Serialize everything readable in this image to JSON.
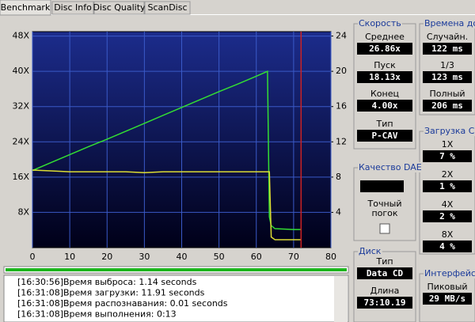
{
  "tabs": [
    "Benchmark",
    "Disc Info",
    "Disc Quality",
    "ScanDisc"
  ],
  "chart_data": {
    "type": "line",
    "x": [
      0,
      5,
      10,
      15,
      20,
      25,
      30,
      35,
      40,
      45,
      50,
      55,
      60,
      63,
      63.5,
      64,
      65,
      70,
      72
    ],
    "series": [
      {
        "color": "#33dd33",
        "values": [
          17.5,
          19.3,
          21.1,
          22.9,
          24.6,
          26.4,
          28.2,
          30,
          31.8,
          33.6,
          35.4,
          37.1,
          38.9,
          40,
          7,
          5,
          4.3,
          4.1,
          4.1
        ]
      },
      {
        "color": "#dddd33",
        "axis": "y2",
        "values": [
          8.8,
          8.7,
          8.6,
          8.6,
          8.6,
          8.6,
          8.5,
          8.6,
          8.6,
          8.6,
          8.6,
          8.6,
          8.6,
          8.6,
          8.6,
          1.2,
          0.9,
          0.9,
          0.9
        ]
      }
    ],
    "xlim": [
      0,
      80
    ],
    "xticks": [
      0,
      10,
      20,
      30,
      40,
      50,
      60,
      70,
      80
    ],
    "ylim": [
      0,
      49
    ],
    "yticks": [
      {
        "value": 8,
        "label": "8X"
      },
      {
        "value": 16,
        "label": "16X"
      },
      {
        "value": 24,
        "label": "24X"
      },
      {
        "value": 32,
        "label": "32X"
      },
      {
        "value": 40,
        "label": "40X"
      },
      {
        "value": 48,
        "label": "48X"
      }
    ],
    "y2lim": [
      0,
      24.5
    ],
    "y2ticks": [
      4,
      8,
      12,
      16,
      20,
      24
    ],
    "grid": true,
    "marker_x": 72,
    "marker_color": "#cc2222"
  },
  "panels": {
    "speed": {
      "title": "Скорость",
      "rows": [
        {
          "label": "Среднее",
          "value": "26.86x"
        },
        {
          "label": "Пуск",
          "value": "18.13x"
        },
        {
          "label": "Конец",
          "value": "4.00x"
        },
        {
          "label": "Тип",
          "value": "P-CAV"
        }
      ]
    },
    "access": {
      "title": "Времена дост",
      "rows": [
        {
          "label": "Случайн.",
          "value": "122 ms"
        },
        {
          "label": "1/3",
          "value": "123 ms"
        },
        {
          "label": "Полный",
          "value": "206 ms"
        }
      ]
    },
    "cpu": {
      "title": "Загрузка CPU",
      "rows": [
        {
          "label": "1X",
          "value": "7 %"
        },
        {
          "label": "2X",
          "value": "1 %"
        },
        {
          "label": "4X",
          "value": "2 %"
        },
        {
          "label": "8X",
          "value": "4 %"
        }
      ]
    },
    "dae": {
      "title": "Качество DAE",
      "check_label": [
        "Точный",
        "погок"
      ]
    },
    "disc": {
      "title": "Диск",
      "rows": [
        {
          "label": "Тип",
          "value": "Data CD"
        },
        {
          "label": "Длина",
          "value": "73:10.19"
        }
      ]
    },
    "iface": {
      "title": "Интерфейс",
      "rows": [
        {
          "label": "Пиковый",
          "value": "29 MB/s"
        }
      ]
    }
  },
  "log": [
    {
      "time": "[16:30:56]",
      "text": "Время выброса: 1.14 seconds"
    },
    {
      "time": "[16:31:08]",
      "text": "Время загрузки: 11.91 seconds"
    },
    {
      "time": "[16:31:08]",
      "text": "Время распознавания: 0.01 seconds"
    },
    {
      "time": "[16:31:08]",
      "text": "Время выполнения: 0:13"
    }
  ]
}
